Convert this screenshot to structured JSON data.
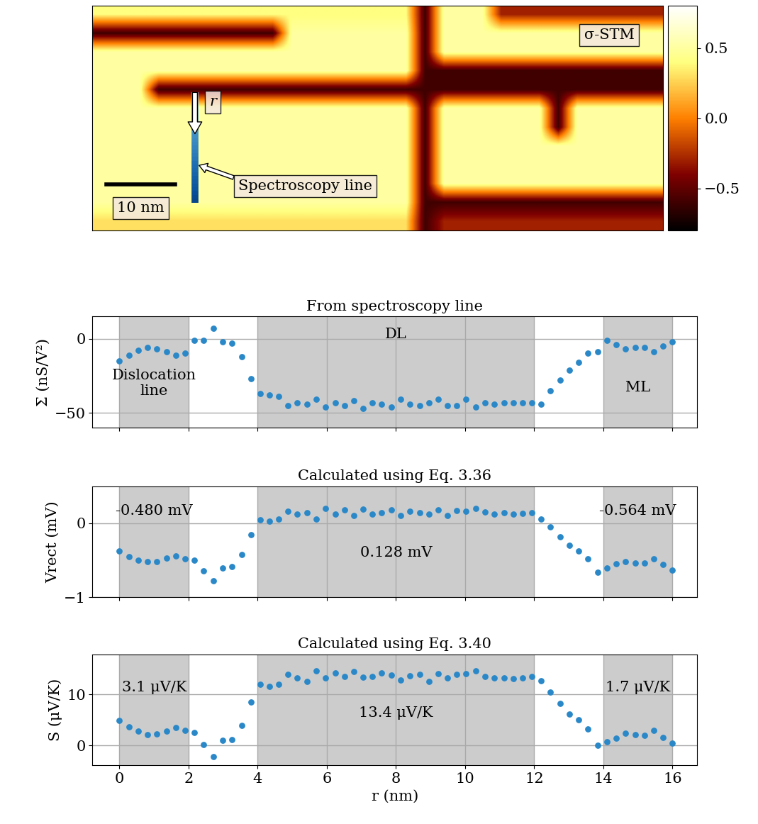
{
  "chart_data": [
    {
      "type": "heatmap",
      "title": "σ-STM",
      "tick_labels": false,
      "width_nm": 83,
      "height_nm": 32.7,
      "cells": [
        [
          0.4,
          0.4,
          0.4,
          0.4,
          0.4,
          0.4,
          0.4,
          0.4,
          0.4,
          0.4,
          0.4,
          0.4,
          0.4,
          0.4,
          0.4,
          0.4,
          0.4,
          -0.6,
          0.5,
          0.5,
          0.5,
          -0.3,
          -0.3,
          -0.3,
          -0.3,
          -0.3,
          -0.3,
          -0.3,
          -0.3,
          -0.3
        ],
        [
          -0.6,
          -0.6,
          -0.6,
          -0.6,
          -0.6,
          -0.6,
          -0.6,
          -0.6,
          -0.6,
          -0.6,
          0.5,
          0.5,
          0.5,
          0.5,
          0.5,
          0.5,
          0.5,
          -0.6,
          0.5,
          0.5,
          0.5,
          0.5,
          0.5,
          0.5,
          0.5,
          0.5,
          0.5,
          0.5,
          0.5,
          0.5
        ],
        [
          0.5,
          0.5,
          0.5,
          0.5,
          0.5,
          0.5,
          0.5,
          0.5,
          0.5,
          0.5,
          0.5,
          0.5,
          0.5,
          0.5,
          0.5,
          0.5,
          0.5,
          -0.6,
          0.5,
          0.5,
          0.5,
          0.5,
          0.5,
          0.5,
          0.5,
          0.5,
          0.5,
          0.5,
          0.5,
          0.5
        ],
        [
          0.5,
          0.5,
          0.5,
          0.5,
          0.5,
          0.5,
          0.5,
          0.5,
          0.5,
          0.5,
          0.5,
          0.5,
          0.5,
          0.5,
          0.5,
          0.5,
          0.5,
          -0.6,
          -0.6,
          -0.6,
          -0.6,
          -0.6,
          -0.6,
          -0.6,
          -0.6,
          -0.6,
          -0.6,
          -0.6,
          -0.6,
          -0.6
        ],
        [
          0.5,
          0.5,
          0.5,
          -0.6,
          -0.6,
          -0.6,
          -0.6,
          -0.6,
          -0.6,
          -0.6,
          -0.6,
          -0.6,
          -0.6,
          -0.6,
          -0.6,
          -0.6,
          -0.6,
          -0.6,
          -0.6,
          -0.6,
          -0.6,
          -0.6,
          -0.6,
          -0.6,
          -0.6,
          -0.6,
          -0.6,
          -0.6,
          -0.6,
          -0.6
        ],
        [
          0.5,
          0.5,
          0.5,
          0.5,
          0.5,
          0.5,
          0.5,
          0.5,
          0.5,
          0.5,
          0.5,
          0.5,
          0.5,
          0.5,
          0.5,
          0.5,
          0.5,
          -0.6,
          0.5,
          0.5,
          0.5,
          0.5,
          0.5,
          0.5,
          -0.6,
          0.5,
          0.5,
          0.5,
          0.5,
          0.5
        ],
        [
          0.5,
          0.5,
          0.5,
          0.5,
          0.5,
          0.5,
          0.5,
          0.5,
          0.5,
          0.5,
          0.5,
          0.5,
          0.5,
          0.5,
          0.5,
          0.5,
          0.5,
          -0.6,
          0.5,
          0.5,
          0.5,
          0.5,
          0.5,
          0.5,
          -0.6,
          0.5,
          0.5,
          0.5,
          0.5,
          0.5
        ],
        [
          0.5,
          0.5,
          0.5,
          0.5,
          0.5,
          0.5,
          0.5,
          0.5,
          0.5,
          0.5,
          0.5,
          0.5,
          0.5,
          0.5,
          0.5,
          0.5,
          0.5,
          -0.6,
          0.5,
          0.5,
          0.5,
          0.5,
          0.5,
          0.5,
          0.5,
          0.5,
          0.5,
          0.5,
          0.5,
          0.5
        ],
        [
          0.5,
          0.5,
          0.5,
          0.5,
          0.5,
          0.5,
          0.5,
          0.5,
          0.5,
          0.5,
          0.5,
          0.5,
          0.5,
          0.5,
          0.5,
          0.5,
          0.5,
          -0.6,
          0.5,
          0.5,
          0.5,
          0.5,
          0.5,
          0.5,
          0.5,
          0.5,
          0.5,
          0.5,
          0.5,
          0.5
        ],
        [
          0.5,
          0.5,
          0.5,
          0.5,
          0.5,
          0.5,
          0.5,
          0.5,
          0.5,
          0.5,
          0.5,
          0.5,
          0.5,
          0.5,
          0.5,
          0.5,
          0.5,
          -0.6,
          0.5,
          0.5,
          0.5,
          0.5,
          0.5,
          0.5,
          0.5,
          0.5,
          0.5,
          0.5,
          0.5,
          0.5
        ],
        [
          0.5,
          0.5,
          0.5,
          0.5,
          0.5,
          0.5,
          0.5,
          0.5,
          0.5,
          0.5,
          0.5,
          0.5,
          0.5,
          0.5,
          0.5,
          0.5,
          0.5,
          -0.6,
          -0.6,
          -0.6,
          -0.6,
          -0.6,
          -0.6,
          -0.6,
          -0.6,
          -0.6,
          -0.6,
          -0.6,
          -0.6,
          -0.6
        ],
        [
          0.3,
          0.3,
          0.3,
          0.3,
          0.3,
          0.3,
          0.3,
          0.3,
          0.3,
          0.3,
          0.3,
          0.3,
          0.3,
          0.3,
          0.3,
          0.3,
          0.3,
          -0.6,
          -0.3,
          -0.3,
          -0.3,
          -0.3,
          -0.3,
          -0.3,
          -0.3,
          -0.3,
          -0.3,
          -0.3,
          -0.3,
          -0.3
        ]
      ],
      "colorbar": {
        "range": [
          -0.8,
          0.8
        ],
        "ticks": [
          {
            "value": -0.5,
            "label": "−0.5"
          },
          {
            "value": 0.0,
            "label": "0.0"
          },
          {
            "value": 0.5,
            "label": "0.5"
          }
        ]
      },
      "scale_bar": {
        "length": 10,
        "label": "10 nm"
      },
      "spectroscopy_line": {
        "x": 14.9,
        "y_start": 12.6,
        "length": 16,
        "label": "Spectroscopy line",
        "direction_label": "r"
      }
    },
    {
      "type": "scatter",
      "title": "From spectroscopy line",
      "ylabel": "Σ (nS/V²)",
      "tick_labels": "y",
      "color": "#2a88c8",
      "grid": true,
      "x": [
        0,
        0.27,
        0.54,
        0.81,
        1.08,
        1.36,
        1.63,
        1.9,
        2.17,
        2.44,
        2.71,
        2.98,
        3.25,
        3.53,
        3.8,
        4.07,
        4.34,
        4.61,
        4.88,
        5.15,
        5.42,
        5.69,
        5.97,
        6.24,
        6.51,
        6.78,
        7.05,
        7.32,
        7.59,
        7.86,
        8.14,
        8.41,
        8.68,
        8.95,
        9.22,
        9.49,
        9.76,
        10.03,
        10.31,
        10.58,
        10.85,
        11.12,
        11.39,
        11.66,
        11.93,
        12.2,
        12.47,
        12.75,
        13.02,
        13.29,
        13.56,
        13.83,
        14.1,
        14.37,
        14.64,
        14.92,
        15.19,
        15.46,
        15.73,
        16.0
      ],
      "values": [
        -15,
        -11,
        -8,
        -6,
        -7,
        -9,
        -11,
        -10,
        -1,
        -1,
        7,
        -2,
        -3,
        -12,
        -27,
        -37,
        -38,
        -39,
        -45,
        -43,
        -44,
        -41,
        -46,
        -43,
        -45,
        -42,
        -47,
        -43,
        -44,
        -46,
        -41,
        -44,
        -45,
        -43,
        -41,
        -45,
        -45,
        -41,
        -46,
        -43,
        -44,
        -43,
        -43,
        -43,
        -43,
        -44,
        -35,
        -28,
        -21,
        -16,
        -10,
        -9,
        -1,
        -4,
        -7,
        -6,
        -6,
        -9,
        -5,
        -2
      ],
      "xlim": [
        -0.78,
        16.72
      ],
      "xticks": [
        0,
        2,
        4,
        6,
        8,
        10,
        12,
        14,
        16
      ],
      "ylim": [
        -60,
        15
      ],
      "yticks": [
        {
          "value": -50,
          "label": "−50"
        },
        0
      ],
      "shaded_regions": [
        [
          0,
          2
        ],
        [
          4,
          12
        ],
        [
          14,
          16
        ]
      ],
      "annotations": [
        "Dislocation\nline",
        "DL",
        "ML"
      ]
    },
    {
      "type": "scatter",
      "title": "Calculated using Eq. 3.36",
      "ylabel": "Vrect (mV)",
      "tick_labels": "y",
      "color": "#2a88c8",
      "grid": true,
      "x": [
        0,
        0.27,
        0.54,
        0.81,
        1.08,
        1.36,
        1.63,
        1.9,
        2.17,
        2.44,
        2.71,
        2.98,
        3.25,
        3.53,
        3.8,
        4.07,
        4.34,
        4.61,
        4.88,
        5.15,
        5.42,
        5.69,
        5.97,
        6.24,
        6.51,
        6.78,
        7.05,
        7.32,
        7.59,
        7.86,
        8.14,
        8.41,
        8.68,
        8.95,
        9.22,
        9.49,
        9.76,
        10.03,
        10.31,
        10.58,
        10.85,
        11.12,
        11.39,
        11.66,
        11.93,
        12.2,
        12.47,
        12.75,
        13.02,
        13.29,
        13.56,
        13.83,
        14.1,
        14.37,
        14.64,
        14.92,
        15.19,
        15.46,
        15.73,
        16.0
      ],
      "values": [
        -0.37,
        -0.45,
        -0.5,
        -0.52,
        -0.52,
        -0.47,
        -0.44,
        -0.48,
        -0.5,
        -0.64,
        -0.78,
        -0.6,
        -0.58,
        -0.42,
        -0.15,
        0.05,
        0.03,
        0.06,
        0.16,
        0.12,
        0.14,
        0.06,
        0.2,
        0.12,
        0.18,
        0.1,
        0.19,
        0.12,
        0.14,
        0.18,
        0.1,
        0.16,
        0.14,
        0.12,
        0.18,
        0.1,
        0.17,
        0.16,
        0.2,
        0.15,
        0.12,
        0.14,
        0.12,
        0.13,
        0.14,
        0.06,
        -0.05,
        -0.18,
        -0.3,
        -0.37,
        -0.48,
        -0.66,
        -0.6,
        -0.55,
        -0.52,
        -0.54,
        -0.54,
        -0.48,
        -0.56,
        -0.63
      ],
      "xlim": [
        -0.78,
        16.72
      ],
      "xticks": [
        0,
        2,
        4,
        6,
        8,
        10,
        12,
        14,
        16
      ],
      "ylim": [
        -1,
        0.5
      ],
      "yticks": [
        {
          "value": -1,
          "label": "−1"
        },
        0
      ],
      "shaded_regions": [
        [
          0,
          2
        ],
        [
          4,
          12
        ],
        [
          14,
          16
        ]
      ],
      "annotations": [
        "-0.480 mV",
        "0.128 mV",
        "-0.564 mV"
      ]
    },
    {
      "type": "scatter",
      "title": "Calculated using Eq. 3.40",
      "ylabel": "S (μV/K)",
      "xlabel": "r (nm)",
      "color": "#2a88c8",
      "grid": true,
      "x": [
        0,
        0.27,
        0.54,
        0.81,
        1.08,
        1.36,
        1.63,
        1.9,
        2.17,
        2.44,
        2.71,
        2.98,
        3.25,
        3.53,
        3.8,
        4.07,
        4.34,
        4.61,
        4.88,
        5.15,
        5.42,
        5.69,
        5.97,
        6.24,
        6.51,
        6.78,
        7.05,
        7.32,
        7.59,
        7.86,
        8.14,
        8.41,
        8.68,
        8.95,
        9.22,
        9.49,
        9.76,
        10.03,
        10.31,
        10.58,
        10.85,
        11.12,
        11.39,
        11.66,
        11.93,
        12.2,
        12.47,
        12.75,
        13.02,
        13.29,
        13.56,
        13.83,
        14.1,
        14.37,
        14.64,
        14.92,
        15.19,
        15.46,
        15.73,
        16.0
      ],
      "values": [
        4.9,
        3.7,
        2.8,
        2.2,
        2.3,
        2.8,
        3.5,
        3.0,
        2.6,
        0.2,
        -2.2,
        1.0,
        1.2,
        4.0,
        8.5,
        12.0,
        11.6,
        12.0,
        14.0,
        13.3,
        12.5,
        14.6,
        13.2,
        14.3,
        13.5,
        14.5,
        13.4,
        13.6,
        14.3,
        13.8,
        12.9,
        13.7,
        13.9,
        12.6,
        14.1,
        13.2,
        14.0,
        14.1,
        14.7,
        13.6,
        13.2,
        13.3,
        13.1,
        13.3,
        13.6,
        12.7,
        10.5,
        8.2,
        6.2,
        5.0,
        3.3,
        0,
        0.8,
        1.5,
        2.4,
        2.1,
        2.0,
        3.0,
        1.6,
        0.5
      ],
      "xlim": [
        -0.78,
        16.72
      ],
      "xticks": [
        0,
        2,
        4,
        6,
        8,
        10,
        12,
        14,
        16
      ],
      "ylim": [
        -3.9,
        17.9
      ],
      "yticks": [
        0,
        10
      ],
      "shaded_regions": [
        [
          0,
          2
        ],
        [
          4,
          12
        ],
        [
          14,
          16
        ]
      ],
      "annotations": [
        "3.1 μV/K",
        "13.4 μV/K",
        "1.7 μV/K"
      ]
    }
  ]
}
